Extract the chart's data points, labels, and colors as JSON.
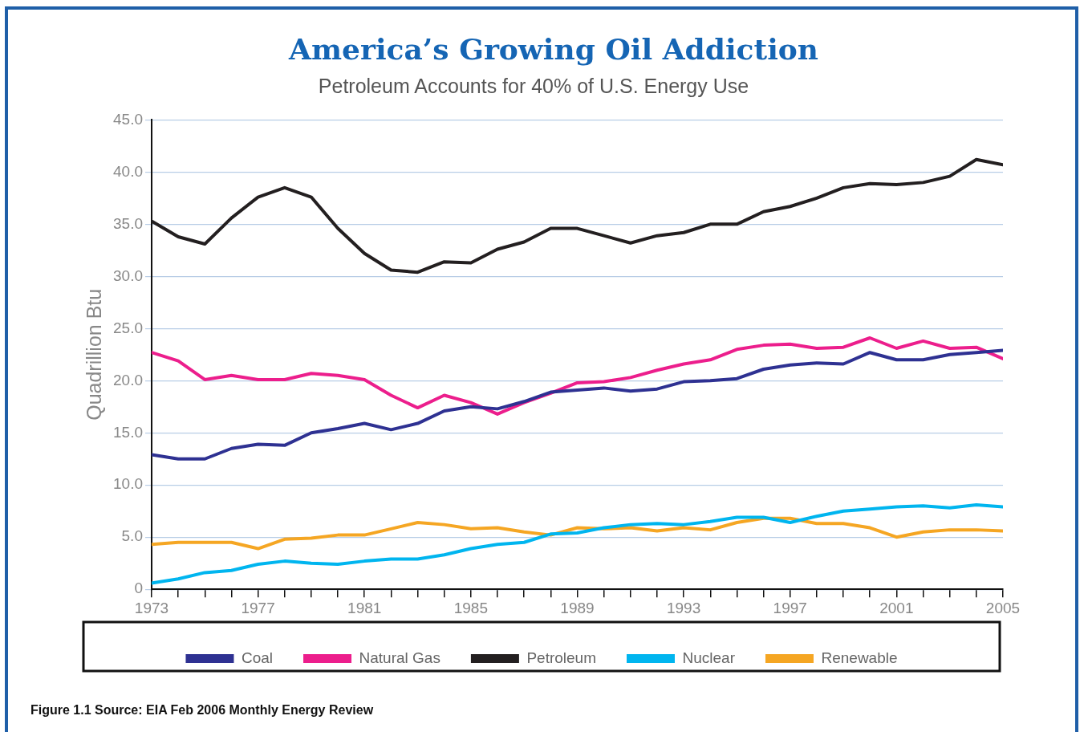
{
  "chart_data": {
    "type": "line",
    "title": "America’s Growing Oil Addiction",
    "subtitle": "Petroleum Accounts for 40% of U.S. Energy Use",
    "ylabel": "Quadrillion Btu",
    "annotations": [
      "Figure 1.1 Source: EIA Feb 2006 Monthly Energy Review"
    ],
    "x": [
      1973,
      1974,
      1975,
      1976,
      1977,
      1978,
      1979,
      1980,
      1981,
      1982,
      1983,
      1984,
      1985,
      1986,
      1987,
      1988,
      1989,
      1990,
      1991,
      1992,
      1993,
      1994,
      1995,
      1996,
      1997,
      1998,
      1999,
      2000,
      2001,
      2002,
      2003,
      2004,
      2005
    ],
    "series": [
      {
        "name": "Coal",
        "color": "#2e3192",
        "values": [
          12.9,
          12.5,
          12.5,
          13.5,
          13.9,
          13.8,
          15.0,
          15.4,
          15.9,
          15.3,
          15.9,
          17.1,
          17.5,
          17.3,
          18.0,
          18.9,
          19.1,
          19.3,
          19.0,
          19.2,
          19.9,
          20.0,
          20.2,
          21.1,
          21.5,
          21.7,
          21.6,
          22.7,
          22.0,
          22.0,
          22.5,
          22.7,
          22.9
        ]
      },
      {
        "name": "Natural Gas",
        "color": "#ec1e8c",
        "values": [
          22.7,
          21.9,
          20.1,
          20.5,
          20.1,
          20.1,
          20.7,
          20.5,
          20.1,
          18.6,
          17.4,
          18.6,
          17.9,
          16.8,
          17.9,
          18.8,
          19.8,
          19.9,
          20.3,
          21.0,
          21.6,
          22.0,
          23.0,
          23.4,
          23.5,
          23.1,
          23.2,
          24.1,
          23.1,
          23.8,
          23.1,
          23.2,
          22.1
        ]
      },
      {
        "name": "Petroleum",
        "color": "#231f20",
        "values": [
          35.3,
          33.8,
          33.1,
          35.6,
          37.6,
          38.5,
          37.6,
          34.6,
          32.2,
          30.6,
          30.4,
          31.4,
          31.3,
          32.6,
          33.3,
          34.6,
          34.6,
          33.9,
          33.2,
          33.9,
          34.2,
          35.0,
          35.0,
          36.2,
          36.7,
          37.5,
          38.5,
          38.9,
          38.8,
          39.0,
          39.6,
          41.2,
          40.7
        ]
      },
      {
        "name": "Nuclear",
        "color": "#00b5ef",
        "values": [
          0.6,
          1.0,
          1.6,
          1.8,
          2.4,
          2.7,
          2.5,
          2.4,
          2.7,
          2.9,
          2.9,
          3.3,
          3.9,
          4.3,
          4.5,
          5.3,
          5.4,
          5.9,
          6.2,
          6.3,
          6.2,
          6.5,
          6.9,
          6.9,
          6.4,
          7.0,
          7.5,
          7.7,
          7.9,
          8.0,
          7.8,
          8.1,
          7.9
        ]
      },
      {
        "name": "Renewable",
        "color": "#f5a623",
        "values": [
          4.3,
          4.5,
          4.5,
          4.5,
          3.9,
          4.8,
          4.9,
          5.2,
          5.2,
          5.8,
          6.4,
          6.2,
          5.8,
          5.9,
          5.5,
          5.2,
          5.9,
          5.8,
          5.9,
          5.6,
          5.9,
          5.7,
          6.4,
          6.8,
          6.8,
          6.3,
          6.3,
          5.9,
          5.0,
          5.5,
          5.7,
          5.7,
          5.6
        ]
      }
    ],
    "xlim": [
      1973,
      2005
    ],
    "xticks": [
      1973,
      {
        "value": 1974,
        "label": null
      },
      {
        "value": 1975,
        "label": null
      },
      {
        "value": 1976,
        "label": null
      },
      1977,
      {
        "value": 1978,
        "label": null
      },
      {
        "value": 1979,
        "label": null
      },
      {
        "value": 1980,
        "label": null
      },
      1981,
      {
        "value": 1982,
        "label": null
      },
      {
        "value": 1983,
        "label": null
      },
      {
        "value": 1984,
        "label": null
      },
      1985,
      {
        "value": 1986,
        "label": null
      },
      {
        "value": 1987,
        "label": null
      },
      {
        "value": 1988,
        "label": null
      },
      1989,
      {
        "value": 1990,
        "label": null
      },
      {
        "value": 1991,
        "label": null
      },
      {
        "value": 1992,
        "label": null
      },
      1993,
      {
        "value": 1994,
        "label": null
      },
      {
        "value": 1995,
        "label": null
      },
      {
        "value": 1996,
        "label": null
      },
      1997,
      {
        "value": 1998,
        "label": null
      },
      {
        "value": 1999,
        "label": null
      },
      {
        "value": 2000,
        "label": null
      },
      2001,
      {
        "value": 2002,
        "label": null
      },
      {
        "value": 2003,
        "label": null
      },
      {
        "value": 2004,
        "label": null
      },
      2005
    ],
    "ylim": [
      0,
      45
    ],
    "yticks": [
      0,
      {
        "value": 5,
        "label": "5.0"
      },
      {
        "value": 10,
        "label": "10.0"
      },
      {
        "value": 15,
        "label": "15.0"
      },
      {
        "value": 20,
        "label": "20.0"
      },
      {
        "value": 25,
        "label": "25.0"
      },
      {
        "value": 30,
        "label": "30.0"
      },
      {
        "value": 35,
        "label": "35.0"
      },
      {
        "value": 40,
        "label": "40.0"
      },
      {
        "value": 45,
        "label": "45.0"
      }
    ],
    "grid": "y",
    "legend": "bottom",
    "marker": "none",
    "line_style": "solid"
  }
}
